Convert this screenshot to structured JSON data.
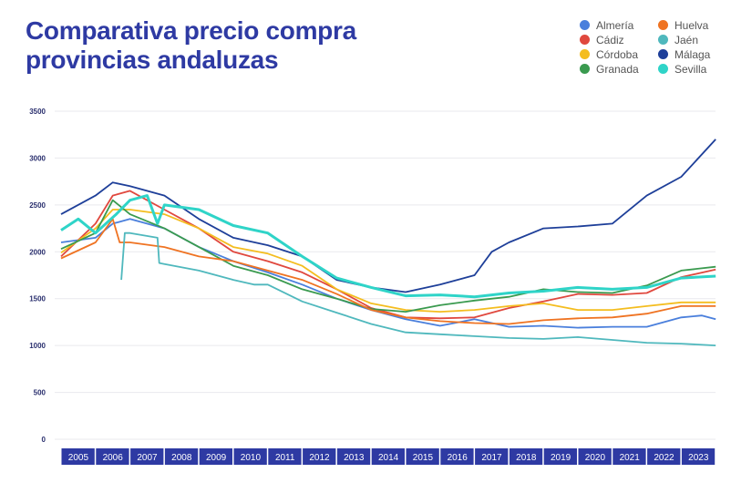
{
  "chart_data": {
    "type": "line",
    "title": "Comparativa precio compra provincias andaluzas",
    "title_lines": [
      "Comparativa precio compra",
      "provincias andaluzas"
    ],
    "xlabel": "",
    "ylabel": "",
    "ylim": [
      0,
      3500
    ],
    "yticks": [
      "0",
      "500",
      "1000",
      "1500",
      "2000",
      "2500",
      "3000",
      "3500"
    ],
    "xlim": [
      2005,
      2024
    ],
    "xticks": [
      "2005",
      "2006",
      "2007",
      "2008",
      "2009",
      "2010",
      "2011",
      "2012",
      "2013",
      "2014",
      "2015",
      "2016",
      "2017",
      "2018",
      "2019",
      "2020",
      "2021",
      "2022",
      "2023"
    ],
    "grid": true,
    "legend_position": "top-right",
    "series": [
      {
        "name": "Almería",
        "color": "#4a7fdc",
        "points": [
          [
            2005,
            2100
          ],
          [
            2006,
            2150
          ],
          [
            2006.5,
            2300
          ],
          [
            2007,
            2350
          ],
          [
            2008,
            2250
          ],
          [
            2009,
            2050
          ],
          [
            2010,
            1900
          ],
          [
            2011,
            1780
          ],
          [
            2012,
            1650
          ],
          [
            2013,
            1500
          ],
          [
            2014,
            1380
          ],
          [
            2015,
            1280
          ],
          [
            2016,
            1210
          ],
          [
            2017,
            1280
          ],
          [
            2018,
            1200
          ],
          [
            2019,
            1210
          ],
          [
            2020,
            1190
          ],
          [
            2021,
            1200
          ],
          [
            2022,
            1200
          ],
          [
            2023,
            1300
          ],
          [
            2023.6,
            1320
          ],
          [
            2024,
            1280
          ]
        ]
      },
      {
        "name": "Cádiz",
        "color": "#e0483e",
        "points": [
          [
            2005,
            1950
          ],
          [
            2006,
            2300
          ],
          [
            2006.5,
            2600
          ],
          [
            2007,
            2650
          ],
          [
            2008,
            2450
          ],
          [
            2009,
            2250
          ],
          [
            2010,
            2000
          ],
          [
            2011,
            1900
          ],
          [
            2012,
            1780
          ],
          [
            2013,
            1600
          ],
          [
            2014,
            1400
          ],
          [
            2015,
            1300
          ],
          [
            2016,
            1290
          ],
          [
            2017,
            1300
          ],
          [
            2018,
            1400
          ],
          [
            2019,
            1470
          ],
          [
            2020,
            1550
          ],
          [
            2021,
            1540
          ],
          [
            2022,
            1560
          ],
          [
            2023,
            1730
          ],
          [
            2024,
            1810
          ]
        ]
      },
      {
        "name": "Córdoba",
        "color": "#f4bd1f",
        "points": [
          [
            2005,
            1990
          ],
          [
            2006,
            2250
          ],
          [
            2006.5,
            2450
          ],
          [
            2007,
            2450
          ],
          [
            2008,
            2400
          ],
          [
            2009,
            2250
          ],
          [
            2010,
            2050
          ],
          [
            2011,
            1980
          ],
          [
            2012,
            1850
          ],
          [
            2013,
            1600
          ],
          [
            2014,
            1450
          ],
          [
            2015,
            1380
          ],
          [
            2016,
            1360
          ],
          [
            2017,
            1380
          ],
          [
            2018,
            1420
          ],
          [
            2019,
            1450
          ],
          [
            2020,
            1380
          ],
          [
            2021,
            1380
          ],
          [
            2022,
            1420
          ],
          [
            2023,
            1460
          ],
          [
            2024,
            1460
          ]
        ]
      },
      {
        "name": "Granada",
        "color": "#3a9a4f",
        "points": [
          [
            2005,
            2030
          ],
          [
            2006,
            2200
          ],
          [
            2006.5,
            2550
          ],
          [
            2007,
            2400
          ],
          [
            2008,
            2250
          ],
          [
            2009,
            2050
          ],
          [
            2010,
            1850
          ],
          [
            2011,
            1750
          ],
          [
            2012,
            1600
          ],
          [
            2013,
            1500
          ],
          [
            2014,
            1390
          ],
          [
            2015,
            1360
          ],
          [
            2016,
            1430
          ],
          [
            2017,
            1480
          ],
          [
            2018,
            1520
          ],
          [
            2019,
            1600
          ],
          [
            2020,
            1570
          ],
          [
            2021,
            1560
          ],
          [
            2022,
            1640
          ],
          [
            2023,
            1800
          ],
          [
            2024,
            1840
          ]
        ]
      },
      {
        "name": "Huelva",
        "color": "#ef7322",
        "points": [
          [
            2005,
            1930
          ],
          [
            2006,
            2100
          ],
          [
            2006.5,
            2350
          ],
          [
            2006.7,
            2100
          ],
          [
            2007,
            2100
          ],
          [
            2008,
            2050
          ],
          [
            2009,
            1950
          ],
          [
            2010,
            1900
          ],
          [
            2011,
            1800
          ],
          [
            2012,
            1700
          ],
          [
            2013,
            1550
          ],
          [
            2014,
            1380
          ],
          [
            2015,
            1300
          ],
          [
            2016,
            1260
          ],
          [
            2017,
            1240
          ],
          [
            2018,
            1230
          ],
          [
            2019,
            1270
          ],
          [
            2020,
            1290
          ],
          [
            2021,
            1300
          ],
          [
            2022,
            1340
          ],
          [
            2023,
            1420
          ],
          [
            2024,
            1420
          ]
        ]
      },
      {
        "name": "Jaén",
        "color": "#4fb8bd",
        "points": [
          [
            2006.75,
            1700
          ],
          [
            2006.85,
            2200
          ],
          [
            2007,
            2200
          ],
          [
            2007.8,
            2150
          ],
          [
            2007.85,
            1880
          ],
          [
            2008,
            1870
          ],
          [
            2009,
            1800
          ],
          [
            2010,
            1700
          ],
          [
            2010.6,
            1650
          ],
          [
            2011,
            1650
          ],
          [
            2012,
            1470
          ],
          [
            2013,
            1350
          ],
          [
            2014,
            1230
          ],
          [
            2015,
            1140
          ],
          [
            2016,
            1120
          ],
          [
            2017,
            1100
          ],
          [
            2018,
            1080
          ],
          [
            2019,
            1070
          ],
          [
            2020,
            1090
          ],
          [
            2021,
            1060
          ],
          [
            2022,
            1030
          ],
          [
            2023,
            1020
          ],
          [
            2024,
            1000
          ]
        ]
      },
      {
        "name": "Málaga",
        "color": "#1e3f99",
        "points": [
          [
            2005,
            2400
          ],
          [
            2006,
            2600
          ],
          [
            2006.5,
            2740
          ],
          [
            2007,
            2700
          ],
          [
            2008,
            2600
          ],
          [
            2009,
            2350
          ],
          [
            2010,
            2150
          ],
          [
            2011,
            2070
          ],
          [
            2012,
            1950
          ],
          [
            2013,
            1700
          ],
          [
            2014,
            1620
          ],
          [
            2015,
            1570
          ],
          [
            2016,
            1650
          ],
          [
            2017,
            1750
          ],
          [
            2017.5,
            2000
          ],
          [
            2018,
            2100
          ],
          [
            2019,
            2250
          ],
          [
            2020,
            2270
          ],
          [
            2021,
            2300
          ],
          [
            2022,
            2600
          ],
          [
            2023,
            2800
          ],
          [
            2024,
            3200
          ]
        ]
      },
      {
        "name": "Sevilla",
        "color": "#2fd4c8",
        "points": [
          [
            2005,
            2230
          ],
          [
            2005.5,
            2350
          ],
          [
            2006,
            2200
          ],
          [
            2006.6,
            2400
          ],
          [
            2007,
            2550
          ],
          [
            2007.5,
            2600
          ],
          [
            2007.8,
            2300
          ],
          [
            2008,
            2500
          ],
          [
            2009,
            2450
          ],
          [
            2010,
            2280
          ],
          [
            2011,
            2200
          ],
          [
            2012,
            1950
          ],
          [
            2013,
            1720
          ],
          [
            2014,
            1620
          ],
          [
            2015,
            1530
          ],
          [
            2016,
            1540
          ],
          [
            2017,
            1520
          ],
          [
            2018,
            1560
          ],
          [
            2019,
            1580
          ],
          [
            2020,
            1620
          ],
          [
            2021,
            1600
          ],
          [
            2022,
            1620
          ],
          [
            2023,
            1720
          ],
          [
            2024,
            1740
          ]
        ]
      }
    ]
  }
}
